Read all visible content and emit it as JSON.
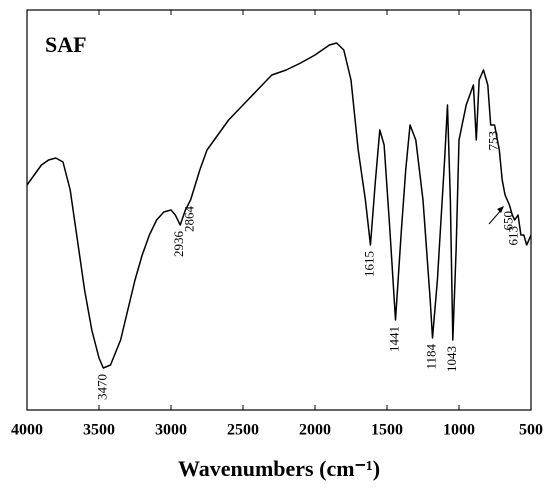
{
  "chart_data": {
    "type": "line",
    "title": "SAF",
    "xlabel": "Wavenumbers (cm⁻¹)",
    "xlim": [
      4000,
      500
    ],
    "ylim": [
      0,
      100
    ],
    "xticks": [
      4000,
      3500,
      3000,
      2500,
      2000,
      1500,
      1000,
      500
    ],
    "series": [
      {
        "color": "#000000",
        "x": [
          4000,
          3950,
          3900,
          3850,
          3800,
          3750,
          3700,
          3650,
          3600,
          3550,
          3500,
          3470,
          3420,
          3350,
          3300,
          3250,
          3200,
          3150,
          3100,
          3050,
          3000,
          2970,
          2936,
          2900,
          2864,
          2800,
          2750,
          2700,
          2600,
          2500,
          2400,
          2300,
          2200,
          2100,
          2000,
          1900,
          1850,
          1800,
          1750,
          1700,
          1650,
          1615,
          1580,
          1550,
          1520,
          1480,
          1441,
          1400,
          1370,
          1340,
          1300,
          1250,
          1200,
          1184,
          1150,
          1100,
          1080,
          1060,
          1043,
          1020,
          1000,
          950,
          900,
          880,
          860,
          830,
          800,
          780,
          753,
          720,
          700,
          680,
          650,
          630,
          613,
          590,
          570,
          550,
          530,
          500
        ],
        "values": [
          56.25,
          58.75,
          61.25,
          62.5,
          63,
          62,
          55,
          42.5,
          30,
          20,
          13,
          10.5,
          11.25,
          17.5,
          25,
          32.5,
          38.75,
          43.75,
          47.5,
          49.5,
          50,
          48.75,
          46.25,
          50,
          52.5,
          60,
          65,
          67.5,
          72.5,
          76.25,
          80,
          83.75,
          85,
          86.75,
          88.75,
          91.25,
          91.75,
          90,
          82.5,
          65,
          52.5,
          41.25,
          57.5,
          70,
          66.25,
          45,
          22.5,
          45,
          60,
          71.25,
          67.5,
          52.5,
          27.5,
          18,
          32.5,
          62.5,
          76.25,
          52.5,
          17.5,
          40,
          67.5,
          76.25,
          81.25,
          67.5,
          82.5,
          85,
          81.25,
          71.25,
          71.25,
          65,
          57.5,
          53.75,
          51.25,
          48.75,
          47.5,
          48.75,
          43.75,
          43.75,
          41.25,
          43.75
        ]
      }
    ],
    "annotations": [
      3470,
      2936,
      2864,
      1615,
      1441,
      1184,
      1043,
      753,
      650,
      613
    ]
  }
}
